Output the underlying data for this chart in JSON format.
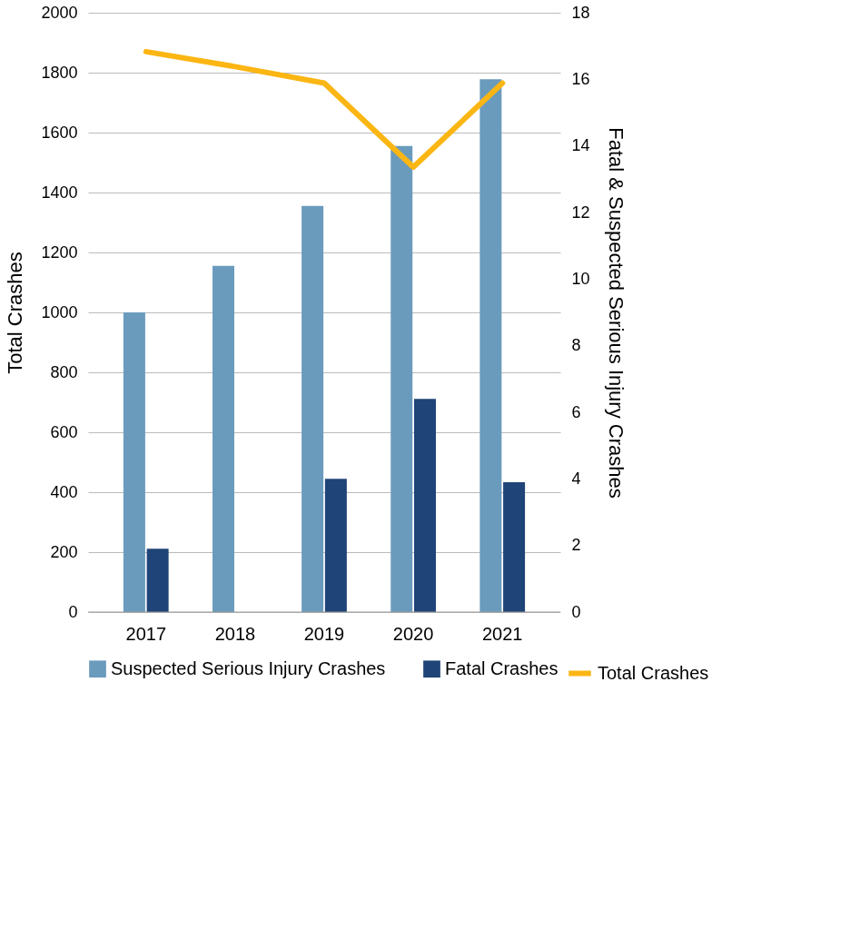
{
  "chart_data": {
    "type": "bar",
    "categories": [
      "2017",
      "2018",
      "2019",
      "2020",
      "2021"
    ],
    "ylabel": "Total Crashes",
    "y2label": "Fatal & Suspected Serious Injury Crashes",
    "ylim": [
      0,
      2000
    ],
    "yticks": [
      0,
      200,
      400,
      600,
      800,
      1000,
      1200,
      1400,
      1600,
      1800,
      2000
    ],
    "y2lim": [
      0,
      18
    ],
    "y2ticks": [
      0,
      2,
      4,
      6,
      8,
      10,
      12,
      14,
      16,
      18
    ],
    "series": [
      {
        "name": "Suspected Serious Injury Crashes",
        "color": "#6a9bbd",
        "axis": "y2",
        "values": [
          9,
          10.4,
          12.2,
          14,
          16
        ]
      },
      {
        "name": "Fatal Crashes",
        "color": "#1f4477",
        "axis": "y2",
        "values": [
          1.9,
          null,
          4,
          6.4,
          3.9
        ]
      },
      {
        "name": "Total Crashes",
        "color": "#fbb614",
        "type": "line",
        "axis": "y",
        "values": [
          1870,
          1820,
          1765,
          1485,
          1765
        ]
      }
    ],
    "grid": "y",
    "legend": "bottom"
  }
}
